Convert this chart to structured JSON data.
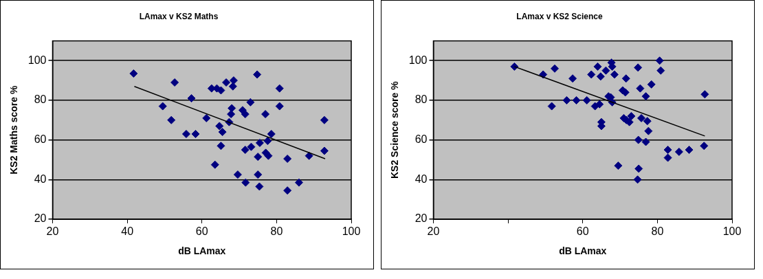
{
  "chart_data": [
    {
      "type": "scatter",
      "title": "LAmax v KS2 Maths",
      "xlabel": "dB LAmax",
      "ylabel": "KS2 Maths score %",
      "xlim": [
        20,
        100
      ],
      "xticks": [
        20,
        40,
        60,
        80,
        100
      ],
      "ylim": [
        20,
        110
      ],
      "yticks": [
        20,
        40,
        60,
        80,
        100
      ],
      "grid": "y",
      "marker": "diamond",
      "legend": false,
      "series": [
        {
          "color": "#000080",
          "x": [
            41.7,
            49.5,
            51.8,
            52.7,
            55.8,
            57.2,
            58.3,
            61.2,
            62.6,
            63.5,
            64,
            64.7,
            65.1,
            65.1,
            65.5,
            66.5,
            67.3,
            67.8,
            68,
            68.3,
            68.5,
            69.6,
            70.9,
            71.6,
            71.6,
            71.7,
            73,
            73.2,
            74.8,
            75,
            75,
            75.4,
            75.5,
            77,
            77.1,
            77.6,
            77.8,
            78.6,
            80.8,
            80.8,
            82.9,
            82.9,
            86,
            88.7,
            92.8,
            92.8
          ],
          "values": [
            93.5,
            77,
            70,
            89,
            63,
            81,
            63,
            71,
            86,
            47.5,
            86,
            67,
            85,
            57,
            64,
            89,
            69,
            73,
            76,
            87,
            90,
            42.5,
            75,
            73,
            55,
            38.5,
            79,
            56.5,
            93,
            42.5,
            51.5,
            36.5,
            58.5,
            73,
            53.5,
            59.5,
            52,
            63,
            86,
            77,
            50.5,
            34.5,
            38.5,
            52,
            70,
            54.5
          ]
        },
        {
          "type": "line",
          "color": "#000000",
          "marker": "none",
          "x": [
            41.9,
            93
          ],
          "values": [
            87,
            50.5
          ]
        }
      ]
    },
    {
      "type": "scatter",
      "title": "LAmax v KS2 Science",
      "xlabel": "dB LAmax",
      "ylabel": "KS2 Science score %",
      "xlim": [
        20,
        100
      ],
      "xticks": [
        20,
        {
          "value": 40,
          "label": null
        },
        60,
        80,
        100
      ],
      "ylim": [
        20,
        110
      ],
      "yticks": [
        20,
        40,
        60,
        80,
        100
      ],
      "grid": "y",
      "marker": "diamond",
      "legend": false,
      "series": [
        {
          "color": "#000080",
          "x": [
            41.7,
            49.4,
            51.7,
            52.5,
            55.7,
            57.3,
            58.3,
            61.1,
            62.3,
            63.3,
            64,
            64.5,
            64.8,
            65,
            65,
            66.2,
            66.9,
            67.5,
            67.7,
            67.9,
            67.9,
            68.5,
            69.5,
            70.7,
            71.4,
            71.6,
            71,
            71.7,
            72.5,
            73,
            74.8,
            74.9,
            75,
            74.7,
            75.4,
            75.7,
            76.9,
            76.9,
            77.3,
            77.6,
            78.4,
            80.6,
            80.9,
            82.8,
            82.8,
            85.8,
            88.5,
            92.5,
            92.7
          ],
          "values": [
            97,
            93,
            77,
            96,
            80,
            91,
            80,
            80,
            93,
            77,
            97,
            78,
            92,
            69,
            67,
            95,
            82,
            81.5,
            99,
            97,
            79,
            93,
            47,
            85,
            84,
            91,
            71,
            70,
            69,
            72,
            96.5,
            60,
            45.5,
            40,
            86,
            71,
            82,
            59,
            69.5,
            64.5,
            88,
            100,
            95,
            55,
            51,
            54,
            55,
            57,
            83
          ]
        },
        {
          "type": "line",
          "color": "#000000",
          "marker": "none",
          "x": [
            41.7,
            92.7
          ],
          "values": [
            97,
            62
          ]
        }
      ]
    }
  ]
}
